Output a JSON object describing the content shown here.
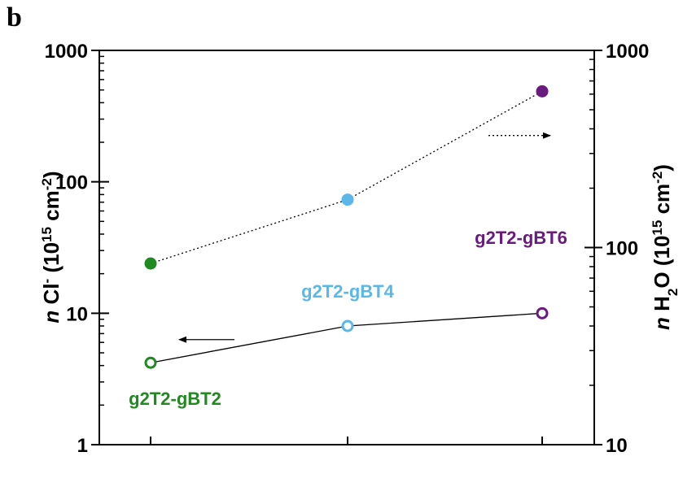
{
  "panel_label": "b",
  "colors": {
    "g2T2-gBT2": "#1f8a1f",
    "g2T2-gBT4": "#5ab8e8",
    "g2T2-gBT6": "#6a1b7e"
  },
  "chart_data": {
    "type": "scatter",
    "title": "",
    "categories": [
      "g2T2-gBT2",
      "g2T2-gBT4",
      "g2T2-gBT6"
    ],
    "left_axis": {
      "label_prefix": "n",
      "label_main": " Cl",
      "label_sup1": "-",
      "label_mid": " (10",
      "label_sup2": "15",
      "label_unit": " cm",
      "label_sup3": "-2",
      "label_end": ")",
      "scale": "log",
      "ylim": [
        1,
        1000
      ],
      "ticks": [
        1,
        10,
        100,
        1000
      ],
      "tick_labels": [
        "1",
        "10",
        "100",
        "1000"
      ]
    },
    "right_axis": {
      "label_prefix": "n",
      "label_main": " H",
      "label_sub": "2",
      "label_mid": "O (10",
      "label_sup2": "15",
      "label_unit": " cm",
      "label_sup3": "-2",
      "label_end": ")",
      "scale": "log",
      "ylim": [
        10,
        1000
      ],
      "ticks": [
        10,
        100,
        1000
      ],
      "tick_labels": [
        "10",
        "100",
        "1000"
      ]
    },
    "series": [
      {
        "quantity": "Cl-",
        "axis": "left",
        "marker": "open-circle",
        "line": "solid",
        "values": [
          4.2,
          8.0,
          10.0
        ]
      },
      {
        "quantity": "H2O",
        "axis": "right",
        "marker": "filled-circle",
        "line": "dotted",
        "values": [
          83,
          175,
          620
        ]
      }
    ],
    "annotations": [
      {
        "text": "g2T2-gBT2",
        "category": "g2T2-gBT2"
      },
      {
        "text": "g2T2-gBT4",
        "category": "g2T2-gBT4"
      },
      {
        "text": "g2T2-gBT6",
        "category": "g2T2-gBT6"
      }
    ],
    "arrows": [
      {
        "points_to": "left",
        "series": "Cl-"
      },
      {
        "points_to": "right",
        "series": "H2O"
      }
    ],
    "grid": false,
    "legend": "none"
  }
}
